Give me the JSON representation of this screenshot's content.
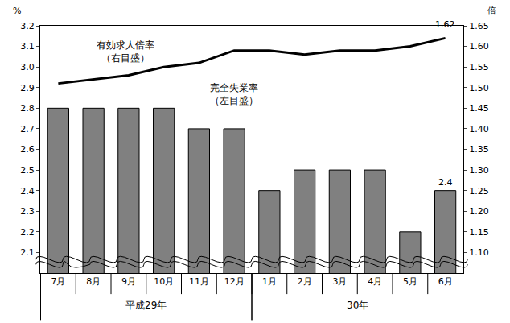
{
  "chart_data": {
    "type": "bar",
    "categories": [
      "7月",
      "8月",
      "9月",
      "10月",
      "11月",
      "12月",
      "1月",
      "2月",
      "3月",
      "4月",
      "5月",
      "6月"
    ],
    "x_groups": [
      {
        "label": "平成29年",
        "start": "7月",
        "end": "12月"
      },
      {
        "label": "30年",
        "start": "1月",
        "end": "6月"
      }
    ],
    "series": [
      {
        "name": "完全失業率（左目盛）",
        "type": "bar",
        "axis": "y",
        "color": "#808080",
        "values": [
          2.8,
          2.8,
          2.8,
          2.8,
          2.7,
          2.7,
          2.4,
          2.5,
          2.5,
          2.5,
          2.2,
          2.4
        ]
      },
      {
        "name": "有効求人倍率（右目盛）",
        "type": "line",
        "axis": "y2",
        "color": "#000000",
        "values": [
          1.51,
          1.52,
          1.53,
          1.55,
          1.56,
          1.59,
          1.59,
          1.58,
          1.59,
          1.59,
          1.6,
          1.62
        ]
      }
    ],
    "ylabel": "%",
    "y2label": "倍",
    "ylim": [
      2.0,
      3.2
    ],
    "yticks": [
      2.1,
      2.2,
      2.3,
      2.4,
      2.5,
      2.6,
      2.7,
      2.8,
      2.9,
      {
        "value": 3,
        "label": "3.0"
      },
      3.1,
      3.2
    ],
    "y2lim": [
      1.05,
      1.65
    ],
    "y2ticks": [
      {
        "value": 1.1,
        "label": "1.10"
      },
      1.15,
      {
        "value": 1.2,
        "label": "1.20"
      },
      1.25,
      {
        "value": 1.3,
        "label": "1.30"
      },
      1.35,
      {
        "value": 1.4,
        "label": "1.40"
      },
      1.45,
      {
        "value": 1.5,
        "label": "1.50"
      },
      1.55,
      {
        "value": 1.6,
        "label": "1.60"
      },
      1.65
    ],
    "annotations": [
      {
        "text": "2.4",
        "x": "6月",
        "y": 2.4,
        "axis": "y"
      },
      {
        "text": "1.62",
        "x": "6月",
        "y": 1.62,
        "axis": "y2"
      }
    ],
    "grid": false
  }
}
